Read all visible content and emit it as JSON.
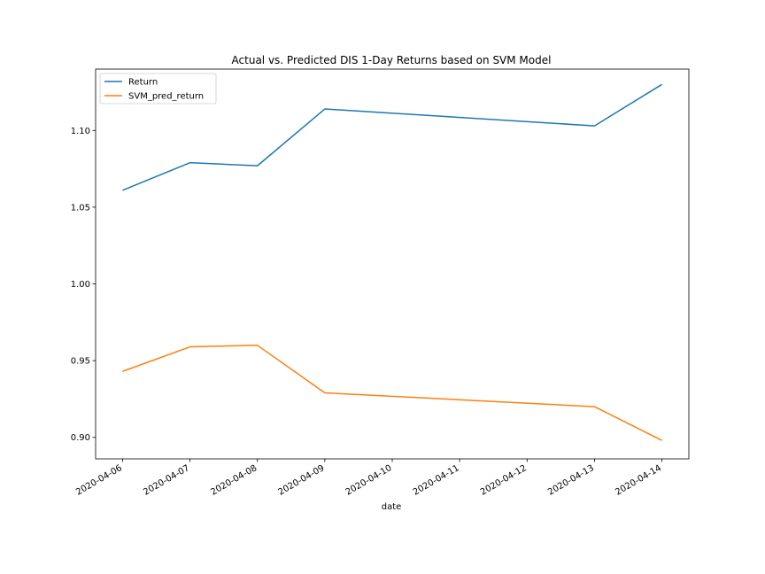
{
  "chart_data": {
    "type": "line",
    "title": "Actual vs. Predicted DIS 1-Day Returns based on SVM Model",
    "xlabel": "date",
    "ylabel": "",
    "x": [
      "2020-04-06",
      "2020-04-07",
      "2020-04-08",
      "2020-04-09",
      "2020-04-13",
      "2020-04-14"
    ],
    "x_ticks": [
      "2020-04-06",
      "2020-04-07",
      "2020-04-08",
      "2020-04-09",
      "2020-04-10",
      "2020-04-11",
      "2020-04-12",
      "2020-04-13",
      "2020-04-14"
    ],
    "y_ticks": [
      0.9,
      0.95,
      1.0,
      1.05,
      1.1
    ],
    "xlim": [
      "2020-04-05T14:24",
      "2020-04-14T09:36"
    ],
    "ylim": [
      0.886,
      1.14
    ],
    "grid": false,
    "legend_position": "top-left",
    "series": [
      {
        "name": "Return",
        "color": "#1f77b4",
        "values": [
          1.061,
          1.079,
          1.077,
          1.114,
          1.103,
          1.13
        ]
      },
      {
        "name": "SVM_pred_return",
        "color": "#ff7f0e",
        "values": [
          0.943,
          0.959,
          0.96,
          0.929,
          0.92,
          0.898
        ]
      }
    ]
  }
}
